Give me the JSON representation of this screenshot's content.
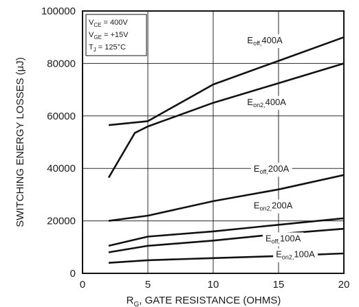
{
  "chart_data": {
    "type": "line",
    "xlabel": {
      "prefix": "R",
      "sub": "G",
      "rest": ", GATE RESISTANCE (OHMS)"
    },
    "ylabel": "SWITCHING ENERGY LOSSES (μJ)",
    "xlim": [
      0,
      20
    ],
    "ylim": [
      0,
      100000
    ],
    "x_ticks": [
      {
        "value": 0,
        "label": "0"
      },
      {
        "value": 5,
        "label": "5"
      },
      {
        "value": 10,
        "label": "10"
      },
      {
        "value": 15,
        "label": "15"
      },
      {
        "value": 20,
        "label": "20"
      }
    ],
    "y_ticks": [
      {
        "value": 0,
        "label": "0"
      },
      {
        "value": 20000,
        "label": "20000"
      },
      {
        "value": 40000,
        "label": "40000"
      },
      {
        "value": 60000,
        "label": "60000"
      },
      {
        "value": 80000,
        "label": "80000"
      },
      {
        "value": 100000,
        "label": "100000"
      }
    ],
    "grid": true,
    "conditions": [
      {
        "base": "V",
        "sub": "CE",
        "rest": " =  400V"
      },
      {
        "base": "V",
        "sub": "GE",
        "rest": " =  +15V"
      },
      {
        "base": "T",
        "sub": "J",
        "rest": " = 125°C"
      }
    ],
    "series": [
      {
        "name": {
          "base": "E",
          "sub": "off,",
          "rest": "400A"
        },
        "label_at": [
          12.6,
          89000
        ],
        "points": [
          [
            2,
            56500
          ],
          [
            5,
            58000
          ],
          [
            10,
            72000
          ],
          [
            15,
            81000
          ],
          [
            20,
            90000
          ]
        ]
      },
      {
        "name": {
          "base": "E",
          "sub": "on2,",
          "rest": "400A"
        },
        "label_at": [
          12.6,
          65500
        ],
        "points": [
          [
            2,
            36500
          ],
          [
            3,
            45000
          ],
          [
            4,
            53500
          ],
          [
            5,
            56000
          ],
          [
            6,
            57800
          ],
          [
            10,
            65000
          ],
          [
            15,
            72500
          ],
          [
            20,
            80000
          ]
        ]
      },
      {
        "name": {
          "base": "E",
          "sub": "off,",
          "rest": "200A"
        },
        "label_at": [
          13.1,
          40000
        ],
        "points": [
          [
            2,
            20000
          ],
          [
            5,
            22000
          ],
          [
            10,
            27500
          ],
          [
            15,
            32000
          ],
          [
            20,
            37500
          ]
        ]
      },
      {
        "name": {
          "base": "E",
          "sub": "on2,",
          "rest": "200A"
        },
        "label_at": [
          13.1,
          26000
        ],
        "points": [
          [
            2,
            10500
          ],
          [
            5,
            14000
          ],
          [
            10,
            16000
          ],
          [
            15,
            18500
          ],
          [
            20,
            21000
          ]
        ]
      },
      {
        "name": {
          "base": "E",
          "sub": "off,",
          "rest": "100A"
        },
        "label_at": [
          14.0,
          13500
        ],
        "points": [
          [
            2,
            8000
          ],
          [
            5,
            10500
          ],
          [
            10,
            12500
          ],
          [
            15,
            15000
          ],
          [
            20,
            17000
          ]
        ]
      },
      {
        "name": {
          "base": "E",
          "sub": "on2,",
          "rest": "100A"
        },
        "label_at": [
          14.8,
          7400
        ],
        "points": [
          [
            2,
            4000
          ],
          [
            5,
            5000
          ],
          [
            10,
            5800
          ],
          [
            15,
            6600
          ],
          [
            20,
            7600
          ]
        ]
      }
    ]
  }
}
